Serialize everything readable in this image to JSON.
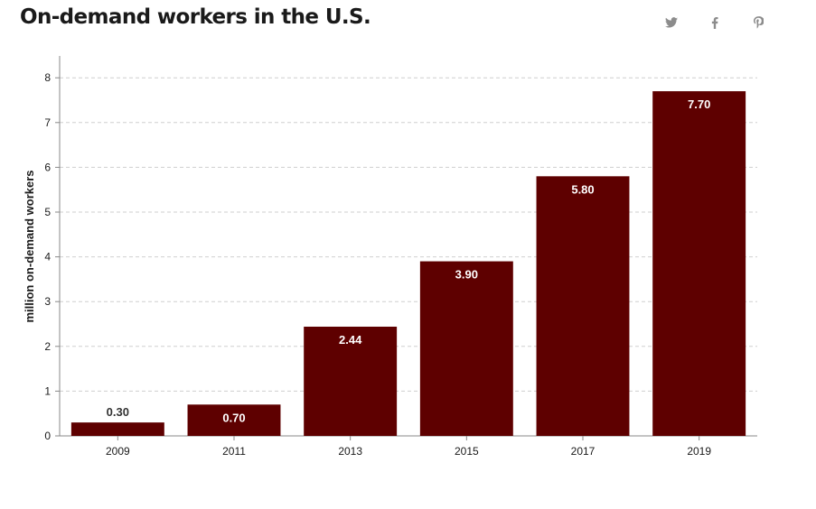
{
  "header": {
    "title": "On-demand workers in the U.S."
  },
  "share": [
    {
      "name": "twitter-icon",
      "color": "#8c8c8c"
    },
    {
      "name": "facebook-icon",
      "color": "#8c8c8c"
    },
    {
      "name": "pinterest-icon",
      "color": "#8c8c8c"
    }
  ],
  "chart_data": {
    "type": "bar",
    "categories": [
      "2009",
      "2011",
      "2013",
      "2015",
      "2017",
      "2019"
    ],
    "values": [
      0.3,
      0.7,
      2.44,
      3.9,
      5.8,
      7.7
    ],
    "value_labels": [
      "0.30",
      "0.70",
      "2.44",
      "3.90",
      "5.80",
      "7.70"
    ],
    "title": "On-demand workers in the U.S.",
    "xlabel": "",
    "ylabel": "million on-demand workers",
    "ylim": [
      0,
      8.5
    ],
    "yticks": [
      0,
      1,
      2,
      3,
      4,
      5,
      6,
      7,
      8
    ],
    "grid": true,
    "bar_color": "#5e0000",
    "label_color_inside": "#ffffff",
    "label_color_outside": "#333333"
  }
}
